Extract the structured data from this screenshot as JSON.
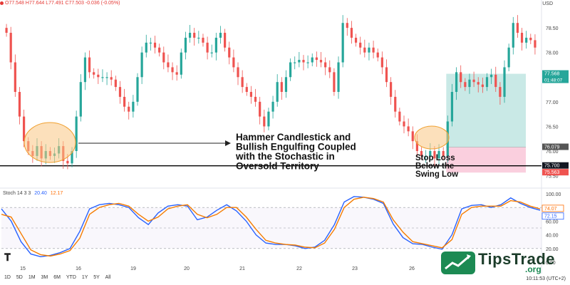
{
  "header": {
    "currency": "USD",
    "ohlc_text": "O77.548 H77.644 L77.491 C77.503 -0.036 (-0.05%)"
  },
  "chart_data": [
    {
      "type": "candlestick",
      "price_ylim": [
        75.45,
        78.95
      ],
      "y_ticks": [
        "78.50",
        "78.00",
        "77.500",
        "77.00",
        "76.50",
        "76.00",
        "75.50"
      ],
      "price_labels": [
        {
          "value": 77.568,
          "text": "77.568",
          "sub": "01:48:07",
          "color": "#26a69a"
        },
        {
          "value": 76.079,
          "text": "76.079",
          "color": "#555555"
        },
        {
          "value": 75.7,
          "text": "75.700",
          "color": "#131722"
        },
        {
          "value": 75.563,
          "text": "75.563",
          "color": "#ef5350"
        }
      ],
      "support_level": 75.7,
      "position": {
        "entry": 76.079,
        "target": 77.568,
        "stop": 75.563
      },
      "closes": [
        78.4,
        77.8,
        77.2,
        76.7,
        76.2,
        76.0,
        75.9,
        76.1,
        75.85,
        76.0,
        75.9,
        75.95,
        76.1,
        75.8,
        75.75,
        76.0,
        76.7,
        77.4,
        77.9,
        77.6,
        77.55,
        77.5,
        77.5,
        77.5,
        77.45,
        77.3,
        77.1,
        76.9,
        76.8,
        77.0,
        77.5,
        78.0,
        78.2,
        78.2,
        78.1,
        78.0,
        77.8,
        77.7,
        77.6,
        77.55,
        78.0,
        78.3,
        78.4,
        78.3,
        78.3,
        78.2,
        78.0,
        78.0,
        78.3,
        78.4,
        78.1,
        77.9,
        77.7,
        77.5,
        77.3,
        77.2,
        77.1,
        77.0,
        76.7,
        76.5,
        76.8,
        77.0,
        77.4,
        77.2,
        77.5,
        77.8,
        77.8,
        77.85,
        77.8,
        77.8,
        77.9,
        77.85,
        77.8,
        77.7,
        77.6,
        77.2,
        77.8,
        78.6,
        78.5,
        78.3,
        78.2,
        78.1,
        78.0,
        78.1,
        78.0,
        77.9,
        77.7,
        77.4,
        77.1,
        76.8,
        76.6,
        76.5,
        76.4,
        76.2,
        76.0,
        75.9,
        75.9,
        76.0,
        75.85,
        76.0,
        75.9,
        76.6,
        77.2,
        77.6,
        77.4,
        77.3,
        77.45,
        77.4,
        77.35,
        77.3,
        77.5,
        77.55,
        77.3,
        77.1,
        77.7,
        78.1,
        78.6,
        78.4,
        78.2,
        78.3,
        78.25,
        78.1
      ],
      "annotations": [
        {
          "text": [
            "Hammer Candlestick and",
            "Bullish Engulfing Coupled",
            "with the Stochastic in",
            "Oversold Territory"
          ]
        },
        {
          "text": [
            "Stop Loss",
            "Below the",
            "Swing Low"
          ]
        }
      ],
      "x_tick_labels": [
        "15",
        "16",
        "19",
        "20",
        "21",
        "22",
        "23",
        "26",
        "28"
      ]
    },
    {
      "type": "line",
      "title": "Stoch 14 3 3",
      "ylim": [
        0,
        100
      ],
      "y_ticks": [
        "100.00",
        "80.00",
        "60.00",
        "40.00",
        "20.00",
        "0.00"
      ],
      "overbought": 80,
      "oversold": 20,
      "series": [
        {
          "name": "%K",
          "value_label": "20.40",
          "color": "#2962ff",
          "values": [
            78,
            60,
            30,
            12,
            8,
            10,
            14,
            20,
            45,
            78,
            84,
            86,
            84,
            80,
            65,
            55,
            72,
            82,
            84,
            82,
            62,
            66,
            76,
            84,
            75,
            60,
            40,
            28,
            26,
            26,
            24,
            20,
            22,
            32,
            55,
            88,
            96,
            95,
            92,
            86,
            56,
            36,
            27,
            26,
            22,
            19,
            40,
            78,
            83,
            84,
            80,
            84,
            94,
            86,
            80,
            76
          ]
        },
        {
          "name": "%D",
          "value_label": "12.17",
          "color": "#f57c00",
          "values": [
            70,
            66,
            42,
            18,
            11,
            9,
            12,
            17,
            35,
            70,
            80,
            84,
            86,
            82,
            70,
            60,
            66,
            78,
            82,
            84,
            70,
            65,
            70,
            80,
            80,
            66,
            48,
            32,
            28,
            26,
            25,
            22,
            21,
            28,
            48,
            80,
            92,
            95,
            93,
            88,
            62,
            44,
            30,
            27,
            24,
            21,
            33,
            70,
            80,
            82,
            82,
            82,
            90,
            88,
            82,
            78
          ]
        }
      ],
      "right_labels": [
        {
          "value": 74.07,
          "text": "74.07",
          "color": "#ff6d00"
        },
        {
          "value": 72.15,
          "text": "72.15",
          "color": "#2962ff"
        }
      ]
    }
  ],
  "toolbar": {
    "ranges": [
      "1D",
      "5D",
      "1M",
      "3M",
      "6M",
      "YTD",
      "1Y",
      "5Y",
      "All"
    ],
    "clock": "10:11:53 (UTC+2)"
  },
  "watermark": {
    "brand": "TipsTrade",
    "tld": ".org",
    "icon": "chart-icon"
  }
}
